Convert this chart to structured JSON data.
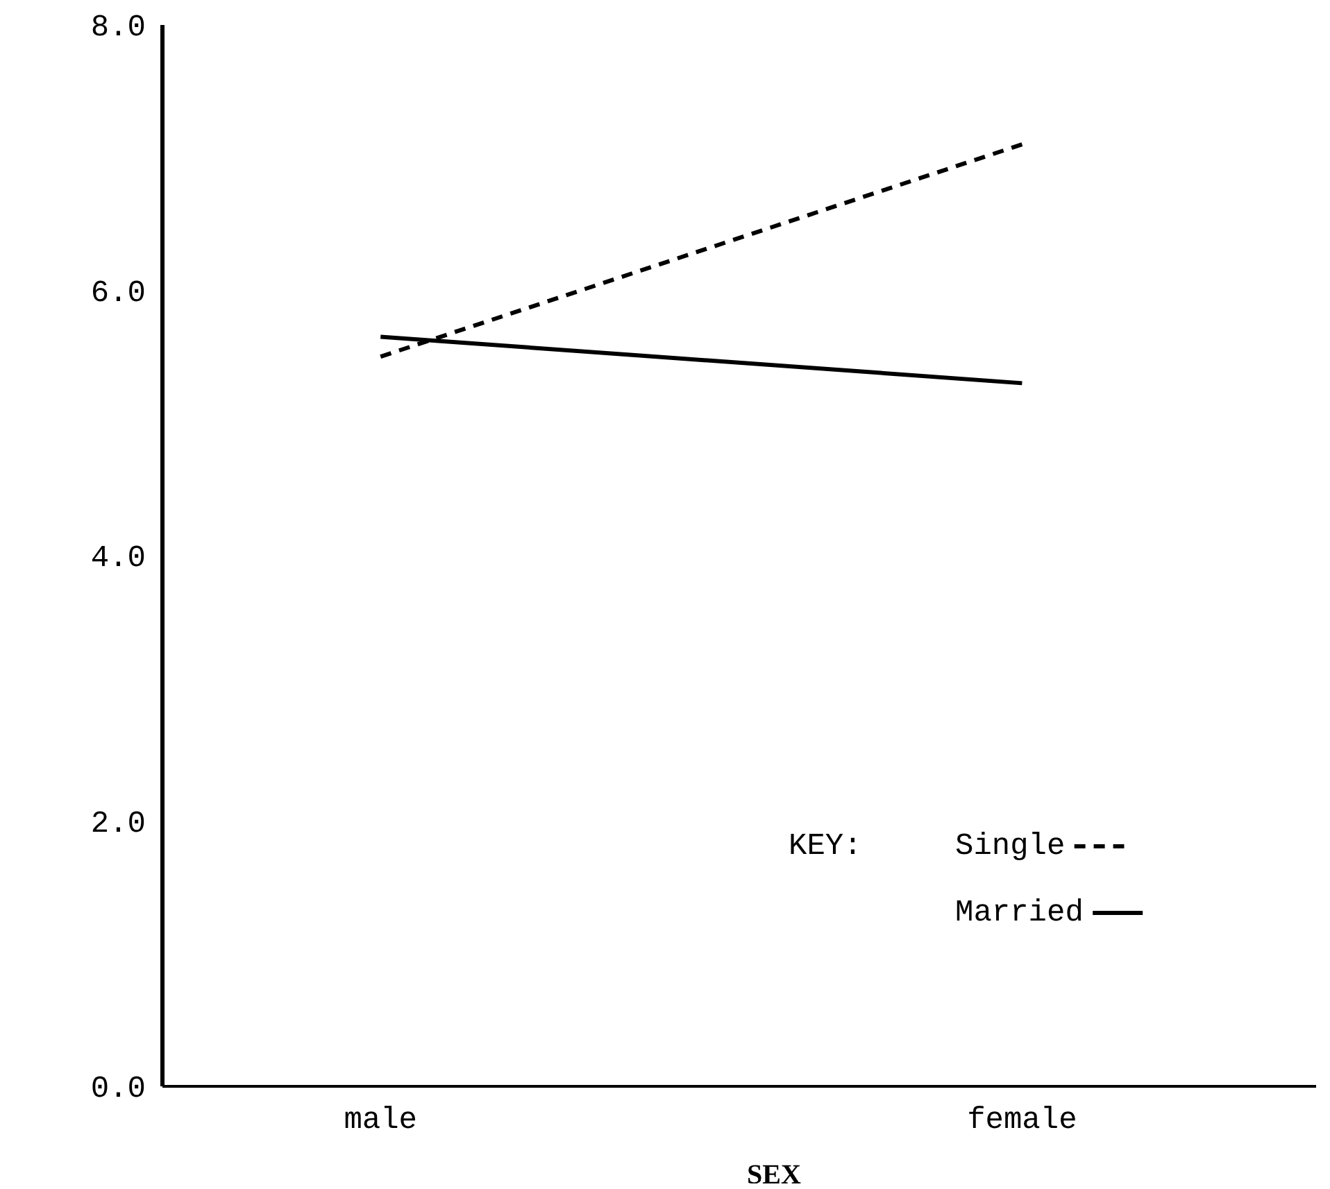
{
  "chart_data": {
    "type": "line",
    "xlabel": "SEX",
    "legend_title": "KEY:",
    "categories": [
      "male",
      "female"
    ],
    "series": [
      {
        "name": "Single",
        "color": "#000000",
        "line_style": "dashed",
        "values": [
          5.5,
          7.1
        ]
      },
      {
        "name": "Married",
        "color": "#000000",
        "line_style": "solid",
        "values": [
          5.65,
          5.3
        ]
      }
    ],
    "ylim": [
      0,
      8
    ],
    "yticks": [
      {
        "value": 0,
        "label": "0.0"
      },
      {
        "value": 2,
        "label": "2.0"
      },
      {
        "value": 4,
        "label": "4.0"
      },
      {
        "value": 6,
        "label": "6.0"
      },
      {
        "value": 8,
        "label": "8.0"
      }
    ],
    "grid": false,
    "legend": "bottom right",
    "marker": "none"
  }
}
